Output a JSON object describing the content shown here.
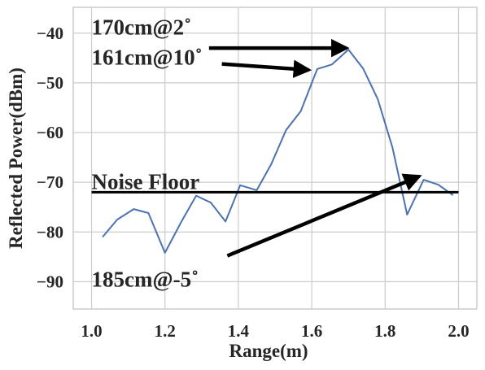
{
  "chart_data": {
    "type": "line",
    "title": "",
    "xlabel": "Range(m)",
    "ylabel": "Reflected Power(dBm)",
    "xlim": [
      0.95,
      2.05
    ],
    "ylim": [
      -95.5,
      -34.8
    ],
    "xticks": [
      1.0,
      1.2,
      1.4,
      1.6,
      1.8,
      2.0
    ],
    "xtick_labels": [
      "1.0",
      "1.2",
      "1.4",
      "1.6",
      "1.8",
      "2.0"
    ],
    "yticks": [
      -90,
      -80,
      -70,
      -60,
      -50,
      -40
    ],
    "ytick_labels": [
      "−90",
      "−80",
      "−70",
      "−60",
      "−50",
      "−40"
    ],
    "grid": true,
    "series": [
      {
        "color": "#4c72b0",
        "x": [
          1.03,
          1.07,
          1.115,
          1.155,
          1.2,
          1.245,
          1.285,
          1.325,
          1.365,
          1.405,
          1.45,
          1.49,
          1.53,
          1.57,
          1.615,
          1.655,
          1.7,
          1.74,
          1.78,
          1.82,
          1.86,
          1.905,
          1.945,
          1.985
        ],
        "y": [
          -81.0,
          -77.5,
          -75.4,
          -76.2,
          -84.2,
          -77.9,
          -72.7,
          -74.1,
          -77.9,
          -70.6,
          -71.6,
          -66.3,
          -59.5,
          -55.7,
          -47.2,
          -46.3,
          -43.3,
          -47.1,
          -53.3,
          -63.0,
          -76.5,
          -69.5,
          -70.5,
          -72.6
        ]
      }
    ],
    "reference_lines": [
      {
        "y": -72.0,
        "x_from": 1.0,
        "x_to": 2.0,
        "color": "#000000",
        "label": "Noise Floor"
      }
    ],
    "annotations": [
      {
        "id": "a170",
        "text": "170cm@2˚",
        "text_x": 1.0,
        "text_y": -40.3,
        "arrow_from": [
          1.32,
          -43.0
        ],
        "arrow_to": [
          1.695,
          -43.0
        ]
      },
      {
        "id": "a161",
        "text": "161cm@10˚",
        "text_x": 1.0,
        "text_y": -46.3,
        "arrow_from": [
          1.355,
          -46.2
        ],
        "arrow_to": [
          1.592,
          -47.4
        ]
      },
      {
        "id": "a185",
        "text": "185cm@-5˚",
        "text_x": 1.0,
        "text_y": -91.0,
        "arrow_from": [
          1.37,
          -84.8
        ],
        "arrow_to": [
          1.893,
          -68.8
        ]
      }
    ]
  }
}
